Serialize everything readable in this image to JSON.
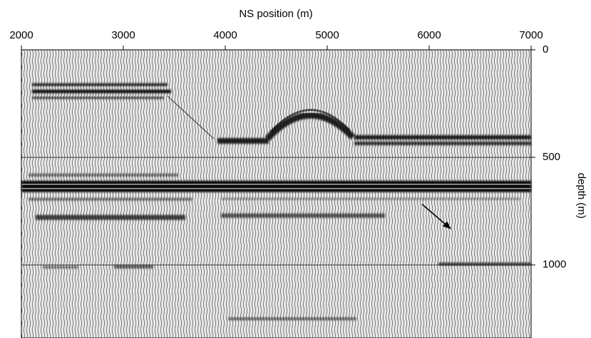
{
  "chart_data": {
    "type": "image",
    "x_label": "NS position (m)",
    "y_label": "depth (m)",
    "xlim": [
      2000,
      7000
    ],
    "xticks": [
      2000,
      3000,
      4000,
      5000,
      6000,
      7000
    ],
    "ylim": [
      0,
      1340
    ],
    "yticks": [
      0,
      500,
      1000
    ],
    "grid": true
  }
}
